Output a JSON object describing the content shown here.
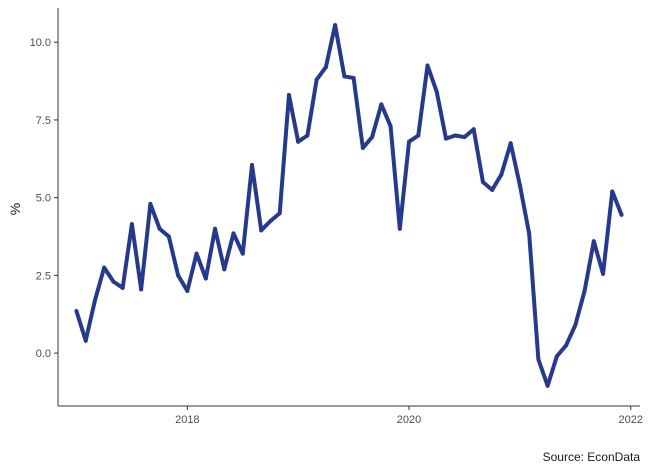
{
  "chart_data": {
    "type": "line",
    "title": "",
    "xlabel": "",
    "ylabel": "%",
    "caption": "Source: EconData",
    "x_tick_labels": [
      "2018",
      "2020",
      "2022"
    ],
    "y_tick_labels": [
      "0.0",
      "2.5",
      "5.0",
      "7.5",
      "10.0"
    ],
    "y_ticks": [
      0,
      2.5,
      5,
      7.5,
      10
    ],
    "x_ticks": [
      "2018-01",
      "2020-01",
      "2022-01"
    ],
    "xlim": [
      "2016-11",
      "2022-02"
    ],
    "ylim": [
      -1.7,
      11.1
    ],
    "grid": false,
    "line_color": "#253a8c",
    "series": [
      {
        "x": [
          "2017-01",
          "2017-02",
          "2017-03",
          "2017-04",
          "2017-05",
          "2017-06",
          "2017-07",
          "2017-08",
          "2017-09",
          "2017-10",
          "2017-11",
          "2017-12",
          "2018-01",
          "2018-02",
          "2018-03",
          "2018-04",
          "2018-05",
          "2018-06",
          "2018-07",
          "2018-08",
          "2018-09",
          "2018-10",
          "2018-11",
          "2018-12",
          "2019-01",
          "2019-02",
          "2019-03",
          "2019-04",
          "2019-05",
          "2019-06",
          "2019-07",
          "2019-08",
          "2019-09",
          "2019-10",
          "2019-11",
          "2019-12",
          "2020-01",
          "2020-02",
          "2020-03",
          "2020-04",
          "2020-05",
          "2020-06",
          "2020-07",
          "2020-08",
          "2020-09",
          "2020-10",
          "2020-11",
          "2020-12",
          "2021-01",
          "2021-02",
          "2021-03",
          "2021-04",
          "2021-05",
          "2021-06",
          "2021-07",
          "2021-08",
          "2021-09",
          "2021-10",
          "2021-11",
          "2021-12"
        ],
        "values": [
          1.35,
          0.4,
          1.7,
          2.75,
          2.3,
          2.1,
          4.15,
          2.05,
          4.8,
          4.0,
          3.75,
          2.5,
          2.0,
          3.2,
          2.4,
          4.0,
          2.7,
          3.85,
          3.2,
          6.05,
          3.95,
          4.25,
          4.5,
          8.3,
          6.8,
          7.0,
          8.8,
          9.2,
          10.55,
          8.9,
          8.85,
          6.6,
          6.95,
          8.0,
          7.3,
          4.0,
          6.8,
          7.0,
          9.25,
          8.4,
          6.9,
          7.0,
          6.95,
          7.2,
          5.5,
          5.25,
          5.75,
          6.75,
          5.4,
          3.85,
          -0.2,
          -1.05,
          -0.1,
          0.25,
          0.9,
          2.0,
          3.6,
          2.55,
          5.2,
          4.45
        ]
      }
    ]
  }
}
